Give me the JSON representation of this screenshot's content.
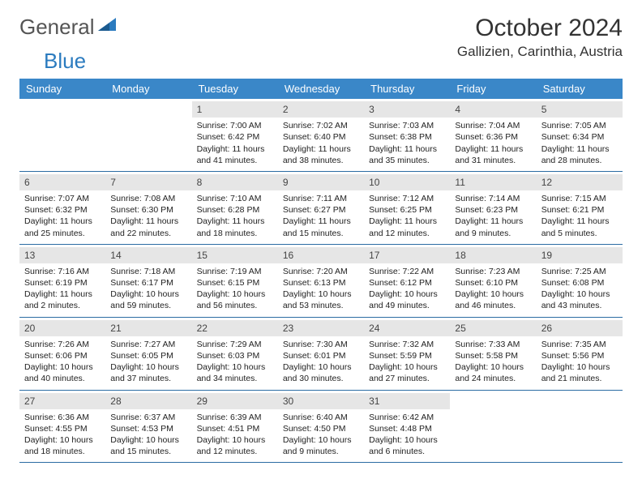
{
  "logo": {
    "text1": "General",
    "text2": "Blue"
  },
  "title": "October 2024",
  "location": "Gallizien, Carinthia, Austria",
  "colors": {
    "header_bg": "#3a87c8",
    "daynum_bg": "#e6e6e6",
    "week_border": "#2b6ca3",
    "logo_blue": "#2b7bbf"
  },
  "dayNames": [
    "Sunday",
    "Monday",
    "Tuesday",
    "Wednesday",
    "Thursday",
    "Friday",
    "Saturday"
  ],
  "weeks": [
    [
      {
        "n": "",
        "sr": "",
        "ss": "",
        "dl": ""
      },
      {
        "n": "",
        "sr": "",
        "ss": "",
        "dl": ""
      },
      {
        "n": "1",
        "sr": "7:00 AM",
        "ss": "6:42 PM",
        "dl": "11 hours and 41 minutes."
      },
      {
        "n": "2",
        "sr": "7:02 AM",
        "ss": "6:40 PM",
        "dl": "11 hours and 38 minutes."
      },
      {
        "n": "3",
        "sr": "7:03 AM",
        "ss": "6:38 PM",
        "dl": "11 hours and 35 minutes."
      },
      {
        "n": "4",
        "sr": "7:04 AM",
        "ss": "6:36 PM",
        "dl": "11 hours and 31 minutes."
      },
      {
        "n": "5",
        "sr": "7:05 AM",
        "ss": "6:34 PM",
        "dl": "11 hours and 28 minutes."
      }
    ],
    [
      {
        "n": "6",
        "sr": "7:07 AM",
        "ss": "6:32 PM",
        "dl": "11 hours and 25 minutes."
      },
      {
        "n": "7",
        "sr": "7:08 AM",
        "ss": "6:30 PM",
        "dl": "11 hours and 22 minutes."
      },
      {
        "n": "8",
        "sr": "7:10 AM",
        "ss": "6:28 PM",
        "dl": "11 hours and 18 minutes."
      },
      {
        "n": "9",
        "sr": "7:11 AM",
        "ss": "6:27 PM",
        "dl": "11 hours and 15 minutes."
      },
      {
        "n": "10",
        "sr": "7:12 AM",
        "ss": "6:25 PM",
        "dl": "11 hours and 12 minutes."
      },
      {
        "n": "11",
        "sr": "7:14 AM",
        "ss": "6:23 PM",
        "dl": "11 hours and 9 minutes."
      },
      {
        "n": "12",
        "sr": "7:15 AM",
        "ss": "6:21 PM",
        "dl": "11 hours and 5 minutes."
      }
    ],
    [
      {
        "n": "13",
        "sr": "7:16 AM",
        "ss": "6:19 PM",
        "dl": "11 hours and 2 minutes."
      },
      {
        "n": "14",
        "sr": "7:18 AM",
        "ss": "6:17 PM",
        "dl": "10 hours and 59 minutes."
      },
      {
        "n": "15",
        "sr": "7:19 AM",
        "ss": "6:15 PM",
        "dl": "10 hours and 56 minutes."
      },
      {
        "n": "16",
        "sr": "7:20 AM",
        "ss": "6:13 PM",
        "dl": "10 hours and 53 minutes."
      },
      {
        "n": "17",
        "sr": "7:22 AM",
        "ss": "6:12 PM",
        "dl": "10 hours and 49 minutes."
      },
      {
        "n": "18",
        "sr": "7:23 AM",
        "ss": "6:10 PM",
        "dl": "10 hours and 46 minutes."
      },
      {
        "n": "19",
        "sr": "7:25 AM",
        "ss": "6:08 PM",
        "dl": "10 hours and 43 minutes."
      }
    ],
    [
      {
        "n": "20",
        "sr": "7:26 AM",
        "ss": "6:06 PM",
        "dl": "10 hours and 40 minutes."
      },
      {
        "n": "21",
        "sr": "7:27 AM",
        "ss": "6:05 PM",
        "dl": "10 hours and 37 minutes."
      },
      {
        "n": "22",
        "sr": "7:29 AM",
        "ss": "6:03 PM",
        "dl": "10 hours and 34 minutes."
      },
      {
        "n": "23",
        "sr": "7:30 AM",
        "ss": "6:01 PM",
        "dl": "10 hours and 30 minutes."
      },
      {
        "n": "24",
        "sr": "7:32 AM",
        "ss": "5:59 PM",
        "dl": "10 hours and 27 minutes."
      },
      {
        "n": "25",
        "sr": "7:33 AM",
        "ss": "5:58 PM",
        "dl": "10 hours and 24 minutes."
      },
      {
        "n": "26",
        "sr": "7:35 AM",
        "ss": "5:56 PM",
        "dl": "10 hours and 21 minutes."
      }
    ],
    [
      {
        "n": "27",
        "sr": "6:36 AM",
        "ss": "4:55 PM",
        "dl": "10 hours and 18 minutes."
      },
      {
        "n": "28",
        "sr": "6:37 AM",
        "ss": "4:53 PM",
        "dl": "10 hours and 15 minutes."
      },
      {
        "n": "29",
        "sr": "6:39 AM",
        "ss": "4:51 PM",
        "dl": "10 hours and 12 minutes."
      },
      {
        "n": "30",
        "sr": "6:40 AM",
        "ss": "4:50 PM",
        "dl": "10 hours and 9 minutes."
      },
      {
        "n": "31",
        "sr": "6:42 AM",
        "ss": "4:48 PM",
        "dl": "10 hours and 6 minutes."
      },
      {
        "n": "",
        "sr": "",
        "ss": "",
        "dl": ""
      },
      {
        "n": "",
        "sr": "",
        "ss": "",
        "dl": ""
      }
    ]
  ],
  "labels": {
    "sunrise": "Sunrise:",
    "sunset": "Sunset:",
    "daylight": "Daylight:"
  }
}
